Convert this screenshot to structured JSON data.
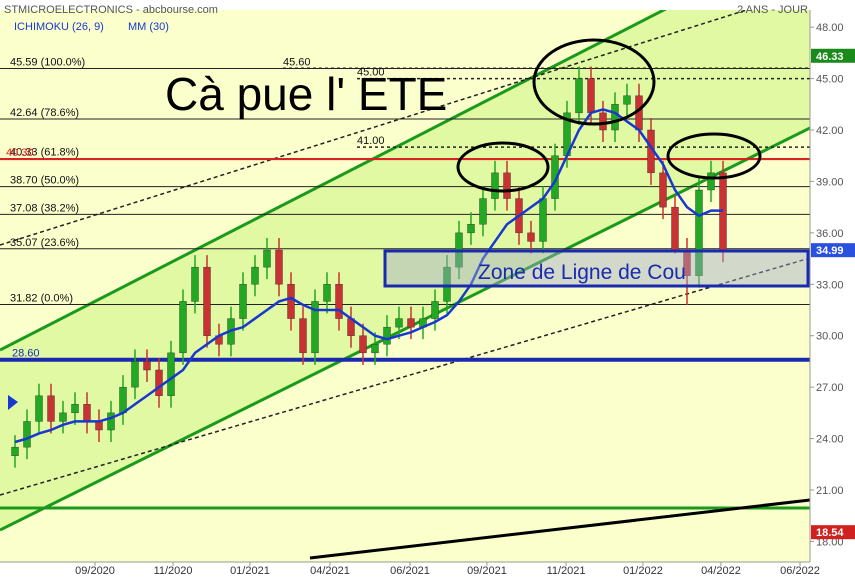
{
  "header": {
    "title": "STMICROELECTRONICS - abcbourse.com",
    "period": "2 ANS - JOUR"
  },
  "chart_data": {
    "type": "candlestick",
    "indicator_label": "ICHIMOKU (26, 9)",
    "open": [
      23,
      23.5,
      25,
      26.5,
      25,
      25.5,
      26,
      25,
      24.5,
      25.5,
      27,
      28.5,
      28,
      26.5,
      29,
      32,
      34,
      30,
      29.5,
      31,
      33,
      34,
      35,
      33,
      31,
      29,
      32,
      33,
      31,
      30,
      29,
      29.5,
      30.5,
      31,
      30.5,
      31,
      32,
      34,
      36,
      36.5,
      38,
      39.5,
      38,
      36,
      35.5,
      38,
      40.5,
      43,
      45,
      43,
      42,
      43.5,
      44,
      42,
      39.5,
      37.5,
      35,
      33.5,
      38.5,
      39.5
    ],
    "high": [
      24.2,
      25.7,
      27.2,
      27.2,
      26.2,
      26.7,
      26.7,
      25.7,
      26.2,
      27.7,
      29.2,
      29.2,
      28.7,
      29.7,
      32.7,
      34.7,
      34.7,
      30.7,
      31.7,
      33.7,
      34.7,
      35.7,
      35.7,
      33.7,
      31.7,
      32.7,
      33.7,
      33.7,
      31.7,
      30.7,
      30.2,
      31.2,
      31.7,
      31.7,
      31.7,
      32.7,
      34.7,
      36.7,
      37.2,
      38.7,
      40.2,
      40.2,
      38.7,
      36.7,
      38.7,
      41.2,
      43.7,
      45.7,
      45.7,
      43.7,
      44.2,
      44.7,
      44.7,
      42.7,
      40.2,
      38.2,
      35.7,
      39.2,
      40.2,
      40.2
    ],
    "low": [
      22.3,
      22.8,
      24.3,
      24.3,
      24.3,
      24.8,
      24.3,
      23.8,
      23.8,
      24.8,
      26.3,
      27.3,
      25.8,
      25.8,
      28.3,
      31.3,
      29.3,
      28.8,
      28.8,
      30.3,
      32.3,
      33.3,
      32.3,
      30.3,
      28.3,
      28.3,
      31.3,
      30.3,
      29.3,
      28.3,
      28.3,
      28.8,
      29.8,
      29.8,
      29.8,
      30.3,
      31.3,
      33.3,
      35.3,
      35.8,
      37.3,
      37.3,
      35.3,
      34.8,
      34.8,
      37.3,
      39.8,
      42.3,
      42.3,
      41.3,
      41.3,
      42.8,
      41.3,
      38.8,
      36.8,
      34.8,
      31.8,
      32.8,
      37.8,
      34.29
    ],
    "close": [
      23.5,
      25,
      26.5,
      25,
      25.5,
      26,
      25,
      24.5,
      25.5,
      27,
      28.5,
      28,
      26.5,
      29,
      32,
      34,
      30,
      29.5,
      31,
      33,
      34,
      35,
      33,
      31,
      29,
      32,
      33,
      31,
      30,
      29,
      29.5,
      30.5,
      31,
      30.5,
      31,
      32,
      34,
      36,
      36.5,
      38,
      39.5,
      38,
      36,
      35.5,
      38,
      40.5,
      43,
      45,
      43,
      42,
      43.5,
      44,
      42,
      39.5,
      37.5,
      35,
      33.5,
      38.5,
      39.5,
      34.99
    ],
    "up_color": "#22a822",
    "down_color": "#c83232",
    "series": [
      {
        "name": "MM (30)",
        "color": "#1838d0",
        "values": [
          23.8,
          24,
          24.3,
          24.5,
          24.8,
          25,
          25,
          25,
          25.2,
          25.5,
          26,
          26.5,
          27,
          27.5,
          28,
          29,
          29.5,
          30,
          30.3,
          30.5,
          31,
          31.5,
          32,
          32.2,
          31.8,
          31.5,
          31.5,
          31.5,
          31,
          30.5,
          30,
          29.8,
          30,
          30.2,
          30.5,
          30.8,
          31.2,
          32,
          33,
          34.5,
          35.5,
          36.5,
          37,
          37.5,
          38,
          39,
          40.5,
          42,
          43,
          43.2,
          43,
          42.5,
          42,
          41,
          40,
          38.5,
          37.5,
          37,
          37.3,
          37.3
        ]
      }
    ],
    "xlim": [
      -1.25,
      66.25
    ],
    "xticks": [
      {
        "value": 6.67,
        "label": "09/2020"
      },
      {
        "value": 13.17,
        "label": "11/2020"
      },
      {
        "value": 19.58,
        "label": "01/2021"
      },
      {
        "value": 26.25,
        "label": "04/2021"
      },
      {
        "value": 32.92,
        "label": "06/2021"
      },
      {
        "value": 39.33,
        "label": "09/2021"
      },
      {
        "value": 45.92,
        "label": "11/2021"
      },
      {
        "value": 52.33,
        "label": "01/2022"
      },
      {
        "value": 58.83,
        "label": "04/2022"
      },
      {
        "value": 65.42,
        "label": "06/2022"
      }
    ],
    "ylim": [
      16.8,
      49
    ],
    "yticks": [
      {
        "value": 18,
        "label": "18.00"
      },
      {
        "value": 21,
        "label": "21.00"
      },
      {
        "value": 24,
        "label": "24.00"
      },
      {
        "value": 27,
        "label": "27.00"
      },
      {
        "value": 30,
        "label": "30.00"
      },
      {
        "value": 33,
        "label": "33.00"
      },
      {
        "value": 36,
        "label": "36.00"
      },
      {
        "value": 39,
        "label": "39.00"
      },
      {
        "value": 42,
        "label": "42.00"
      },
      {
        "value": 45,
        "label": "45.00"
      },
      {
        "value": 48,
        "label": "48.00"
      }
    ],
    "levels": [
      {
        "value": 45.59,
        "label": "45.59 (100.0%)",
        "style": "fib"
      },
      {
        "value": 42.64,
        "label": "42.64 (78.6%)",
        "style": "fib"
      },
      {
        "value": 40.33,
        "label": "40.33 (61.8%)",
        "style": "fib"
      },
      {
        "value": 38.7,
        "label": "38.70 (50.0%)",
        "style": "fib"
      },
      {
        "value": 37.08,
        "label": "37.08 (38.2%)",
        "style": "fib"
      },
      {
        "value": 35.07,
        "label": "35.07 (23.6%)",
        "style": "fib"
      },
      {
        "value": 31.82,
        "label": "31.82 (0.0%)",
        "style": "fib"
      },
      {
        "value": 45.6,
        "label": "45.60",
        "style": "dotted-a"
      },
      {
        "value": 45,
        "label": "45.00",
        "style": "dotted-b"
      },
      {
        "value": 41,
        "label": "41.00",
        "style": "dotted-b"
      },
      {
        "value": 40.3,
        "label": "40.30",
        "style": "red"
      },
      {
        "value": 28.6,
        "label": "28.60",
        "style": "blue"
      }
    ],
    "price_tags": [
      {
        "value": 46.33,
        "label": "46.33",
        "color": "#1a8a1a"
      },
      {
        "value": 34.99,
        "label": "34.99",
        "color": "#2a50e0"
      },
      {
        "value": 18.54,
        "label": "18.54",
        "color": "#d02020"
      }
    ],
    "annotations": [
      "Cà pue l' ETE",
      "Zone de Ligne de Cou"
    ]
  }
}
